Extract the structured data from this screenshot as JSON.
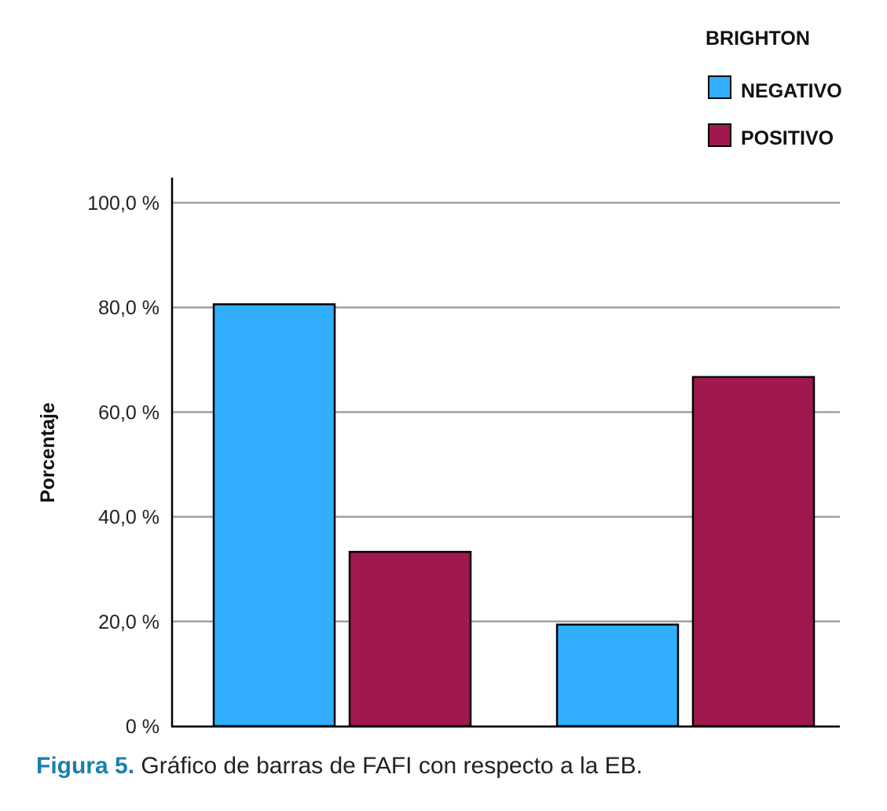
{
  "chart_data": {
    "type": "bar",
    "title": "",
    "xlabel": "",
    "ylabel": "Porcentaje",
    "ylim": [
      0,
      100
    ],
    "yticks": [
      "0 %",
      "20,0 %",
      "40,0 %",
      "60,0 %",
      "80,0 %",
      "100,0 %"
    ],
    "ytick_values": [
      0,
      20,
      40,
      60,
      80,
      100
    ],
    "grid": true,
    "legend": {
      "title": "BRIGHTON",
      "placement": "top-right"
    },
    "categories": [
      "",
      ""
    ],
    "series": [
      {
        "name": "NEGATIVO",
        "color": "#31aefe",
        "values": [
          80.6,
          19.4
        ]
      },
      {
        "name": "POSITIVO",
        "color": "#a0194e",
        "values": [
          33.3,
          66.7
        ]
      }
    ]
  },
  "caption": {
    "label": "Figura 5.",
    "text": " Gráfico de barras de FAFI con respecto a la EB."
  }
}
